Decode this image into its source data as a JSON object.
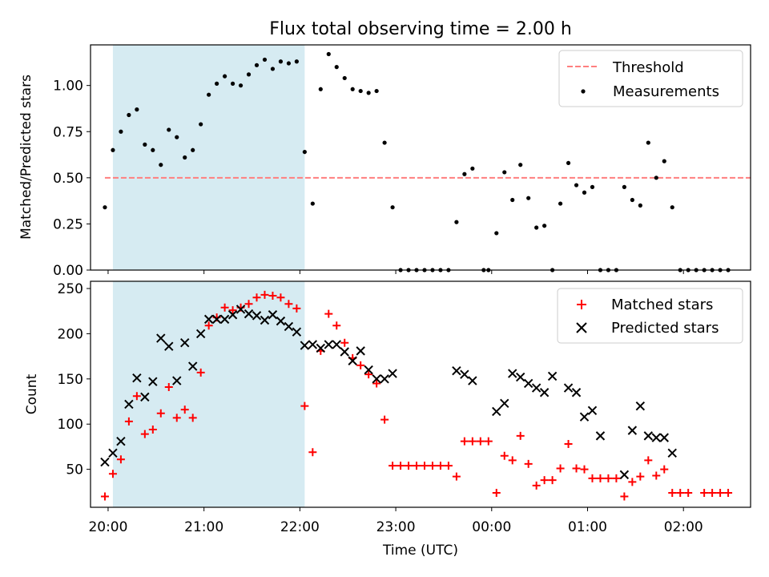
{
  "figure": {
    "title": "Flux total observing time = 2.00 h",
    "xlabel": "Time (UTC)"
  },
  "chart_data": [
    {
      "type": "scatter",
      "panel": "top",
      "ylabel": "Matched/Predicted stars",
      "x_type": "time",
      "x_unit": "UTC",
      "xlim": [
        "19:49",
        "02:42"
      ],
      "ylim": [
        0,
        1.22
      ],
      "yticks": [
        "0.00",
        "0.25",
        "0.50",
        "0.75",
        "1.00"
      ],
      "xticks": [
        "20:00",
        "21:00",
        "22:00",
        "23:00",
        "00:00",
        "01:00",
        "02:00"
      ],
      "shaded_span": [
        "20:03",
        "22:03"
      ],
      "shade_color": "#add8e6",
      "grid": false,
      "legend_position": "upper right",
      "threshold": {
        "name": "Threshold",
        "y": 0.5,
        "x": [
          "19:58",
          "02:42"
        ],
        "color": "#ff7f7f",
        "style": "dashed"
      },
      "series": [
        {
          "name": "Measurements",
          "marker": "dot",
          "color": "#000000",
          "points": [
            [
              "19:58",
              0.34
            ],
            [
              "20:03",
              0.65
            ],
            [
              "20:08",
              0.75
            ],
            [
              "20:13",
              0.84
            ],
            [
              "20:18",
              0.87
            ],
            [
              "20:23",
              0.68
            ],
            [
              "20:28",
              0.65
            ],
            [
              "20:33",
              0.57
            ],
            [
              "20:38",
              0.76
            ],
            [
              "20:43",
              0.72
            ],
            [
              "20:48",
              0.61
            ],
            [
              "20:53",
              0.65
            ],
            [
              "20:58",
              0.79
            ],
            [
              "21:03",
              0.95
            ],
            [
              "21:08",
              1.01
            ],
            [
              "21:13",
              1.05
            ],
            [
              "21:18",
              1.01
            ],
            [
              "21:23",
              1.0
            ],
            [
              "21:28",
              1.06
            ],
            [
              "21:33",
              1.11
            ],
            [
              "21:38",
              1.14
            ],
            [
              "21:43",
              1.09
            ],
            [
              "21:48",
              1.13
            ],
            [
              "21:53",
              1.12
            ],
            [
              "21:58",
              1.13
            ],
            [
              "22:03",
              0.64
            ],
            [
              "22:08",
              0.36
            ],
            [
              "22:13",
              0.98
            ],
            [
              "22:18",
              1.17
            ],
            [
              "22:23",
              1.1
            ],
            [
              "22:28",
              1.04
            ],
            [
              "22:33",
              0.98
            ],
            [
              "22:38",
              0.97
            ],
            [
              "22:43",
              0.96
            ],
            [
              "22:48",
              0.97
            ],
            [
              "22:53",
              0.69
            ],
            [
              "22:58",
              0.34
            ],
            [
              "23:03",
              0.0
            ],
            [
              "23:08",
              0.0
            ],
            [
              "23:13",
              0.0
            ],
            [
              "23:18",
              0.0
            ],
            [
              "23:23",
              0.0
            ],
            [
              "23:28",
              0.0
            ],
            [
              "23:33",
              0.0
            ],
            [
              "23:38",
              0.26
            ],
            [
              "23:43",
              0.52
            ],
            [
              "23:48",
              0.55
            ],
            [
              "23:55",
              0.0
            ],
            [
              "23:58",
              0.0
            ],
            [
              "00:03",
              0.2
            ],
            [
              "00:08",
              0.53
            ],
            [
              "00:13",
              0.38
            ],
            [
              "00:18",
              0.57
            ],
            [
              "00:23",
              0.39
            ],
            [
              "00:28",
              0.23
            ],
            [
              "00:33",
              0.24
            ],
            [
              "00:38",
              0.0
            ],
            [
              "00:43",
              0.36
            ],
            [
              "00:48",
              0.58
            ],
            [
              "00:53",
              0.46
            ],
            [
              "00:58",
              0.42
            ],
            [
              "01:03",
              0.45
            ],
            [
              "01:08",
              0.0
            ],
            [
              "01:13",
              0.0
            ],
            [
              "01:18",
              0.0
            ],
            [
              "01:23",
              0.45
            ],
            [
              "01:28",
              0.38
            ],
            [
              "01:33",
              0.35
            ],
            [
              "01:38",
              0.69
            ],
            [
              "01:43",
              0.5
            ],
            [
              "01:48",
              0.59
            ],
            [
              "01:53",
              0.34
            ],
            [
              "01:58",
              0.0
            ],
            [
              "02:03",
              0.0
            ],
            [
              "02:08",
              0.0
            ],
            [
              "02:13",
              0.0
            ],
            [
              "02:18",
              0.0
            ],
            [
              "02:23",
              0.0
            ],
            [
              "02:28",
              0.0
            ]
          ]
        }
      ]
    },
    {
      "type": "scatter",
      "panel": "bottom",
      "ylabel": "Count",
      "x_type": "time",
      "x_unit": "UTC",
      "xlabel": "Time (UTC)",
      "xlim": [
        "19:49",
        "02:42"
      ],
      "ylim": [
        8,
        258
      ],
      "yticks": [
        "50",
        "100",
        "150",
        "200",
        "250"
      ],
      "xticks": [
        "20:00",
        "21:00",
        "22:00",
        "23:00",
        "00:00",
        "01:00",
        "02:00"
      ],
      "shaded_span": [
        "20:03",
        "22:03"
      ],
      "shade_color": "#add8e6",
      "grid": false,
      "legend_position": "upper right",
      "series": [
        {
          "name": "Matched stars",
          "marker": "plus",
          "color": "#ff0000",
          "points": [
            [
              "19:58",
              20
            ],
            [
              "20:03",
              45
            ],
            [
              "20:08",
              61
            ],
            [
              "20:13",
              103
            ],
            [
              "20:18",
              131
            ],
            [
              "20:23",
              89
            ],
            [
              "20:28",
              94
            ],
            [
              "20:33",
              112
            ],
            [
              "20:38",
              141
            ],
            [
              "20:43",
              107
            ],
            [
              "20:48",
              116
            ],
            [
              "20:53",
              107
            ],
            [
              "20:58",
              157
            ],
            [
              "21:03",
              209
            ],
            [
              "21:08",
              218
            ],
            [
              "21:13",
              229
            ],
            [
              "21:18",
              226
            ],
            [
              "21:23",
              229
            ],
            [
              "21:28",
              233
            ],
            [
              "21:33",
              240
            ],
            [
              "21:38",
              243
            ],
            [
              "21:43",
              242
            ],
            [
              "21:48",
              240
            ],
            [
              "21:53",
              233
            ],
            [
              "21:58",
              228
            ],
            [
              "22:03",
              120
            ],
            [
              "22:08",
              69
            ],
            [
              "22:13",
              181
            ],
            [
              "22:18",
              222
            ],
            [
              "22:23",
              209
            ],
            [
              "22:28",
              190
            ],
            [
              "22:33",
              173
            ],
            [
              "22:38",
              165
            ],
            [
              "22:43",
              155
            ],
            [
              "22:48",
              145
            ],
            [
              "22:53",
              105
            ],
            [
              "22:58",
              54
            ],
            [
              "23:03",
              54
            ],
            [
              "23:08",
              54
            ],
            [
              "23:13",
              54
            ],
            [
              "23:18",
              54
            ],
            [
              "23:23",
              54
            ],
            [
              "23:28",
              54
            ],
            [
              "23:33",
              54
            ],
            [
              "23:38",
              42
            ],
            [
              "23:43",
              81
            ],
            [
              "23:48",
              81
            ],
            [
              "23:53",
              81
            ],
            [
              "23:58",
              81
            ],
            [
              "00:03",
              24
            ],
            [
              "00:08",
              65
            ],
            [
              "00:13",
              60
            ],
            [
              "00:18",
              87
            ],
            [
              "00:23",
              56
            ],
            [
              "00:28",
              32
            ],
            [
              "00:33",
              38
            ],
            [
              "00:38",
              38
            ],
            [
              "00:43",
              51
            ],
            [
              "00:48",
              78
            ],
            [
              "00:53",
              51
            ],
            [
              "00:58",
              50
            ],
            [
              "01:03",
              40
            ],
            [
              "01:08",
              40
            ],
            [
              "01:13",
              40
            ],
            [
              "01:18",
              40
            ],
            [
              "01:23",
              20
            ],
            [
              "01:28",
              36
            ],
            [
              "01:33",
              42
            ],
            [
              "01:38",
              60
            ],
            [
              "01:43",
              43
            ],
            [
              "01:48",
              50
            ],
            [
              "01:53",
              24
            ],
            [
              "01:58",
              24
            ],
            [
              "02:03",
              24
            ],
            [
              "02:13",
              24
            ],
            [
              "02:18",
              24
            ],
            [
              "02:23",
              24
            ],
            [
              "02:28",
              24
            ]
          ]
        },
        {
          "name": "Predicted stars",
          "marker": "x",
          "color": "#000000",
          "points": [
            [
              "19:58",
              58
            ],
            [
              "20:03",
              68
            ],
            [
              "20:08",
              81
            ],
            [
              "20:13",
              122
            ],
            [
              "20:18",
              151
            ],
            [
              "20:23",
              130
            ],
            [
              "20:28",
              147
            ],
            [
              "20:33",
              195
            ],
            [
              "20:38",
              186
            ],
            [
              "20:43",
              148
            ],
            [
              "20:48",
              190
            ],
            [
              "20:53",
              164
            ],
            [
              "20:58",
              200
            ],
            [
              "21:03",
              216
            ],
            [
              "21:08",
              216
            ],
            [
              "21:13",
              216
            ],
            [
              "21:18",
              221
            ],
            [
              "21:23",
              227
            ],
            [
              "21:28",
              222
            ],
            [
              "21:33",
              220
            ],
            [
              "21:38",
              215
            ],
            [
              "21:43",
              221
            ],
            [
              "21:48",
              214
            ],
            [
              "21:53",
              208
            ],
            [
              "21:58",
              202
            ],
            [
              "22:03",
              187
            ],
            [
              "22:08",
              188
            ],
            [
              "22:13",
              184
            ],
            [
              "22:18",
              188
            ],
            [
              "22:23",
              188
            ],
            [
              "22:28",
              180
            ],
            [
              "22:33",
              170
            ],
            [
              "22:38",
              181
            ],
            [
              "22:43",
              160
            ],
            [
              "22:48",
              150
            ],
            [
              "22:53",
              150
            ],
            [
              "22:58",
              156
            ],
            [
              "23:38",
              159
            ],
            [
              "23:43",
              155
            ],
            [
              "23:48",
              148
            ],
            [
              "00:03",
              114
            ],
            [
              "00:08",
              123
            ],
            [
              "00:13",
              156
            ],
            [
              "00:18",
              152
            ],
            [
              "00:23",
              145
            ],
            [
              "00:28",
              140
            ],
            [
              "00:33",
              135
            ],
            [
              "00:38",
              153
            ],
            [
              "00:48",
              140
            ],
            [
              "00:53",
              135
            ],
            [
              "00:58",
              108
            ],
            [
              "01:03",
              115
            ],
            [
              "01:08",
              87
            ],
            [
              "01:23",
              44
            ],
            [
              "01:28",
              93
            ],
            [
              "01:33",
              120
            ],
            [
              "01:38",
              87
            ],
            [
              "01:43",
              85
            ],
            [
              "01:48",
              85
            ],
            [
              "01:53",
              68
            ]
          ]
        }
      ]
    }
  ]
}
